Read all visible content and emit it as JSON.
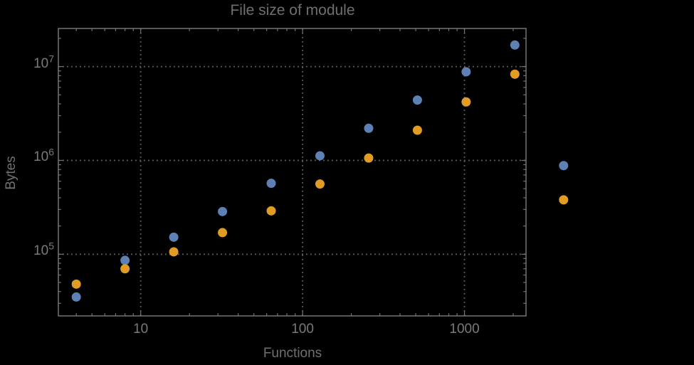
{
  "chart_data": {
    "type": "scatter",
    "title": "File size of module",
    "xlabel": "Functions",
    "ylabel": "Bytes",
    "x_scale": "log",
    "y_scale": "log",
    "x": [
      4,
      8,
      16,
      32,
      64,
      128,
      256,
      512,
      1024,
      2048,
      4096
    ],
    "series": [
      {
        "name": "blue-series",
        "color": "#5E81B5",
        "values": [
          35000,
          86000,
          152000,
          285000,
          570000,
          1120000,
          2200000,
          4400000,
          8800000,
          17000000,
          880000
        ]
      },
      {
        "name": "orange-series",
        "color": "#E19C24",
        "values": [
          48000,
          70000,
          106000,
          170000,
          290000,
          560000,
          1060000,
          2100000,
          4200000,
          8300000,
          380000
        ]
      }
    ],
    "x_ticks": [
      {
        "value": 10,
        "label": "10"
      },
      {
        "value": 100,
        "label": "100"
      },
      {
        "value": 1000,
        "label": "1000"
      }
    ],
    "y_ticks": [
      {
        "value": 100000,
        "label": "10^5"
      },
      {
        "value": 1000000,
        "label": "10^6"
      },
      {
        "value": 10000000,
        "label": "10^7"
      }
    ],
    "x_range": [
      3.1,
      2400
    ],
    "y_range": [
      22000,
      25500000
    ],
    "grid": "dotted",
    "legend": "none",
    "clip_points": false,
    "colors": {
      "background": "#000000",
      "frame": "#747474",
      "grid": "#626262",
      "text": "#757575"
    }
  }
}
